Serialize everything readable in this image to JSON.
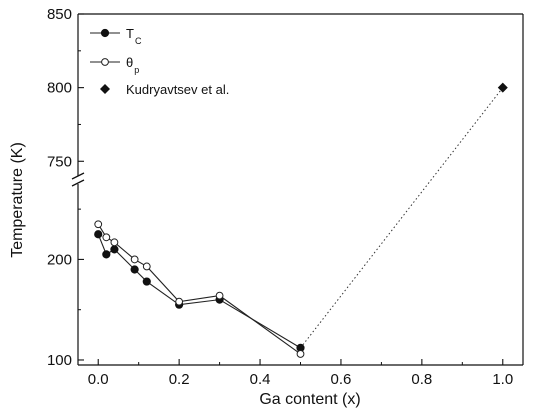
{
  "chart_data": {
    "type": "scatter",
    "title": "",
    "xlabel": "Ga content (x)",
    "ylabel": "Temperature (K)",
    "xlim": [
      -0.05,
      1.05
    ],
    "x_ticks": [
      0.0,
      0.2,
      0.4,
      0.6,
      0.8,
      1.0
    ],
    "x_tick_labels": [
      "0.0",
      "0.2",
      "0.4",
      "0.6",
      "0.8",
      "1.0"
    ],
    "y_broken": true,
    "y_lower_range": [
      95,
      275
    ],
    "y_upper_range": [
      740,
      850
    ],
    "y_ticks": [
      100,
      200,
      750,
      800,
      850
    ],
    "y_tick_labels": [
      "100",
      "200",
      "750",
      "800",
      "850"
    ],
    "legend_position": "top-left",
    "series": [
      {
        "name": "T",
        "name_subscript": "C",
        "marker": "filled-circle",
        "connected": true,
        "x": [
          0.0,
          0.02,
          0.04,
          0.09,
          0.12,
          0.2,
          0.3,
          0.5
        ],
        "y": [
          225,
          205,
          210,
          190,
          178,
          155,
          160,
          112
        ]
      },
      {
        "name": "θ",
        "name_subscript": "p",
        "marker": "open-circle",
        "connected": true,
        "x": [
          0.0,
          0.02,
          0.04,
          0.09,
          0.12,
          0.2,
          0.3,
          0.5
        ],
        "y": [
          235,
          222,
          217,
          200,
          193,
          158,
          164,
          106
        ]
      },
      {
        "name": "Kudryavtsev et al.",
        "marker": "filled-diamond",
        "connected": false,
        "x": [
          1.0
        ],
        "y": [
          800
        ]
      }
    ],
    "dotted_link": {
      "from": [
        0.5,
        112
      ],
      "to": [
        1.0,
        800
      ]
    }
  }
}
